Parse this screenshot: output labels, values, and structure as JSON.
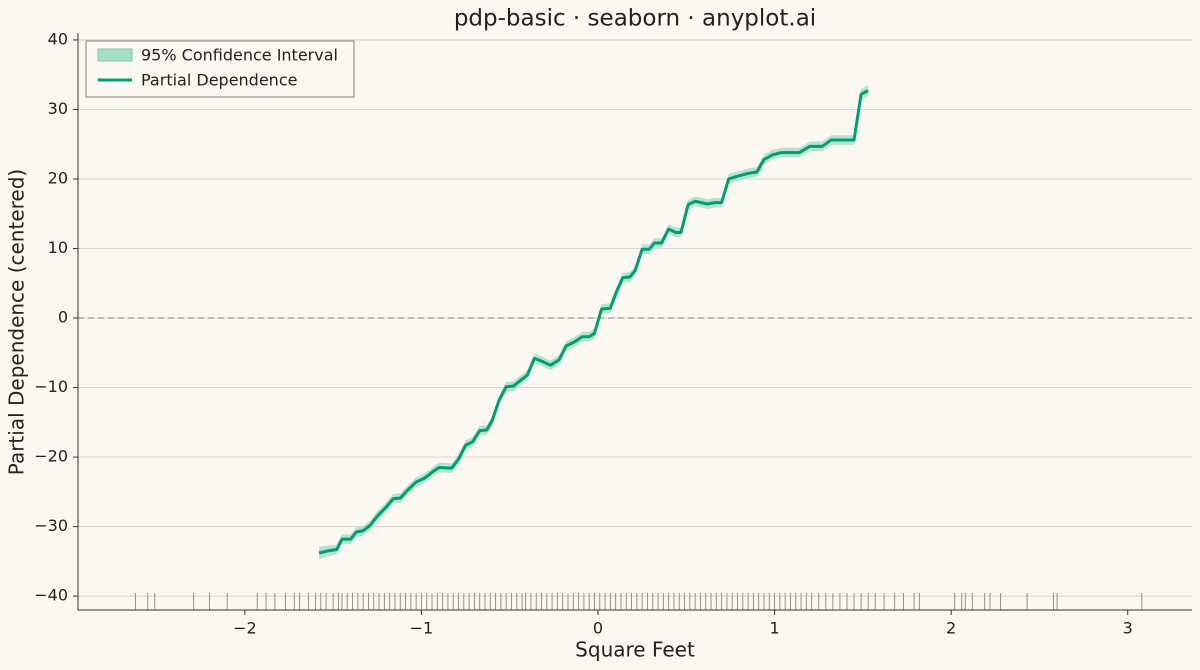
{
  "chart_data": {
    "type": "line",
    "title": "pdp-basic · seaborn · anyplot.ai",
    "x_label": "Square Feet",
    "y_label": "Partial Dependence (centered)",
    "x": [
      -1.58,
      -1.53,
      -1.48,
      -1.45,
      -1.4,
      -1.37,
      -1.33,
      -1.29,
      -1.25,
      -1.2,
      -1.16,
      -1.12,
      -1.08,
      -1.03,
      -0.98,
      -0.93,
      -0.9,
      -0.83,
      -0.79,
      -0.75,
      -0.71,
      -0.67,
      -0.63,
      -0.6,
      -0.56,
      -0.52,
      -0.48,
      -0.43,
      -0.4,
      -0.36,
      -0.31,
      -0.27,
      -0.22,
      -0.18,
      -0.13,
      -0.09,
      -0.05,
      -0.02,
      0.02,
      0.07,
      0.1,
      0.14,
      0.18,
      0.21,
      0.25,
      0.29,
      0.32,
      0.36,
      0.4,
      0.44,
      0.47,
      0.51,
      0.55,
      0.62,
      0.66,
      0.7,
      0.74,
      0.79,
      0.85,
      0.9,
      0.94,
      0.99,
      1.04,
      1.1,
      1.14,
      1.2,
      1.27,
      1.32,
      1.38,
      1.45,
      1.49,
      1.53
    ],
    "series": [
      {
        "name": "Partial Dependence",
        "color": "#009e73",
        "values": [
          -33.8,
          -33.5,
          -33.3,
          -31.8,
          -31.8,
          -30.8,
          -30.6,
          -29.8,
          -28.5,
          -27.2,
          -26.0,
          -25.9,
          -24.8,
          -23.6,
          -23.0,
          -22.0,
          -21.5,
          -21.6,
          -20.3,
          -18.3,
          -17.8,
          -16.2,
          -16.1,
          -14.8,
          -11.8,
          -9.9,
          -9.8,
          -8.8,
          -8.2,
          -5.8,
          -6.3,
          -6.8,
          -6.0,
          -4.0,
          -3.4,
          -2.7,
          -2.7,
          -2.2,
          1.3,
          1.4,
          3.5,
          5.8,
          5.9,
          6.8,
          9.9,
          9.9,
          10.8,
          10.8,
          12.8,
          12.3,
          12.3,
          16.3,
          16.8,
          16.4,
          16.6,
          16.6,
          20.0,
          20.4,
          20.8,
          21.0,
          22.8,
          23.5,
          23.8,
          23.8,
          23.8,
          24.7,
          24.7,
          25.6,
          25.6,
          25.6,
          32.2,
          32.7
        ]
      }
    ],
    "band": {
      "name": "95% Confidence Interval",
      "color": "#a6dcc8",
      "lower": [
        -34.7,
        -34.3,
        -34.0,
        -32.5,
        -32.5,
        -31.5,
        -31.3,
        -30.5,
        -29.2,
        -27.9,
        -26.7,
        -26.6,
        -25.5,
        -24.3,
        -23.7,
        -22.7,
        -22.2,
        -22.3,
        -21.0,
        -19.0,
        -18.5,
        -16.9,
        -16.8,
        -15.5,
        -12.5,
        -10.6,
        -10.5,
        -9.5,
        -8.9,
        -6.5,
        -7.0,
        -7.5,
        -6.7,
        -4.7,
        -4.1,
        -3.4,
        -3.4,
        -2.9,
        0.6,
        0.7,
        2.8,
        5.1,
        5.2,
        6.1,
        9.2,
        9.2,
        10.1,
        10.1,
        12.1,
        11.6,
        11.6,
        15.6,
        16.1,
        15.7,
        15.9,
        15.9,
        19.3,
        19.7,
        20.1,
        20.3,
        22.1,
        22.8,
        23.1,
        23.1,
        23.1,
        24.0,
        24.0,
        24.9,
        24.9,
        24.9,
        31.4,
        31.9
      ],
      "upper": [
        -32.9,
        -32.7,
        -32.6,
        -31.1,
        -31.1,
        -30.1,
        -29.9,
        -29.1,
        -27.8,
        -26.5,
        -25.3,
        -25.2,
        -24.1,
        -22.9,
        -22.3,
        -21.3,
        -20.8,
        -20.9,
        -19.6,
        -17.6,
        -17.1,
        -15.5,
        -15.4,
        -14.1,
        -11.1,
        -9.2,
        -9.1,
        -8.1,
        -7.5,
        -5.1,
        -5.6,
        -6.1,
        -5.3,
        -3.3,
        -2.7,
        -2.0,
        -2.0,
        -1.5,
        2.0,
        2.1,
        4.2,
        6.5,
        6.6,
        7.5,
        10.6,
        10.6,
        11.5,
        11.5,
        13.5,
        13.0,
        13.0,
        17.0,
        17.5,
        17.1,
        17.3,
        17.3,
        20.7,
        21.1,
        21.5,
        21.7,
        23.5,
        24.2,
        24.5,
        24.5,
        24.5,
        25.4,
        25.4,
        26.3,
        26.3,
        26.3,
        33.0,
        33.5
      ]
    },
    "rug": [
      -2.62,
      -2.55,
      -2.51,
      -2.29,
      -2.2,
      -2.1,
      -1.93,
      -1.88,
      -1.83,
      -1.77,
      -1.72,
      -1.69,
      -1.64,
      -1.6,
      -1.57,
      -1.54,
      -1.5,
      -1.47,
      -1.45,
      -1.42,
      -1.39,
      -1.36,
      -1.33,
      -1.3,
      -1.27,
      -1.24,
      -1.21,
      -1.18,
      -1.15,
      -1.12,
      -1.09,
      -1.06,
      -1.03,
      -1.0,
      -0.97,
      -0.94,
      -0.91,
      -0.88,
      -0.85,
      -0.82,
      -0.79,
      -0.76,
      -0.73,
      -0.7,
      -0.67,
      -0.64,
      -0.61,
      -0.58,
      -0.55,
      -0.52,
      -0.49,
      -0.46,
      -0.43,
      -0.41,
      -0.38,
      -0.35,
      -0.32,
      -0.29,
      -0.26,
      -0.23,
      -0.2,
      -0.17,
      -0.14,
      -0.11,
      -0.08,
      -0.05,
      -0.02,
      0.01,
      0.04,
      0.07,
      0.1,
      0.13,
      0.16,
      0.19,
      0.22,
      0.25,
      0.28,
      0.31,
      0.34,
      0.37,
      0.4,
      0.43,
      0.46,
      0.49,
      0.52,
      0.55,
      0.58,
      0.61,
      0.64,
      0.67,
      0.7,
      0.73,
      0.76,
      0.79,
      0.82,
      0.85,
      0.88,
      0.91,
      0.94,
      0.97,
      1.0,
      1.03,
      1.06,
      1.09,
      1.12,
      1.15,
      1.18,
      1.21,
      1.25,
      1.29,
      1.33,
      1.37,
      1.41,
      1.45,
      1.49,
      1.53,
      1.57,
      1.62,
      1.68,
      1.73,
      1.79,
      1.82,
      2.02,
      2.06,
      2.08,
      2.12,
      2.19,
      2.22,
      2.28,
      2.43,
      2.58,
      2.6,
      3.08
    ],
    "rug_color": "#555555",
    "hline": 0,
    "xlim": [
      -2.945,
      3.364
    ],
    "ylim": [
      -42.0,
      41.0
    ],
    "xticks": [
      {
        "value": -2,
        "label": "−2"
      },
      {
        "value": -1,
        "label": "−1"
      },
      0,
      1,
      2,
      3
    ],
    "yticks": [
      {
        "value": -40,
        "label": "−40"
      },
      {
        "value": -30,
        "label": "−30"
      },
      {
        "value": -20,
        "label": "−20"
      },
      {
        "value": -10,
        "label": "−10"
      },
      0,
      10,
      20,
      30,
      40
    ],
    "grid": true,
    "legend": "upper left"
  }
}
